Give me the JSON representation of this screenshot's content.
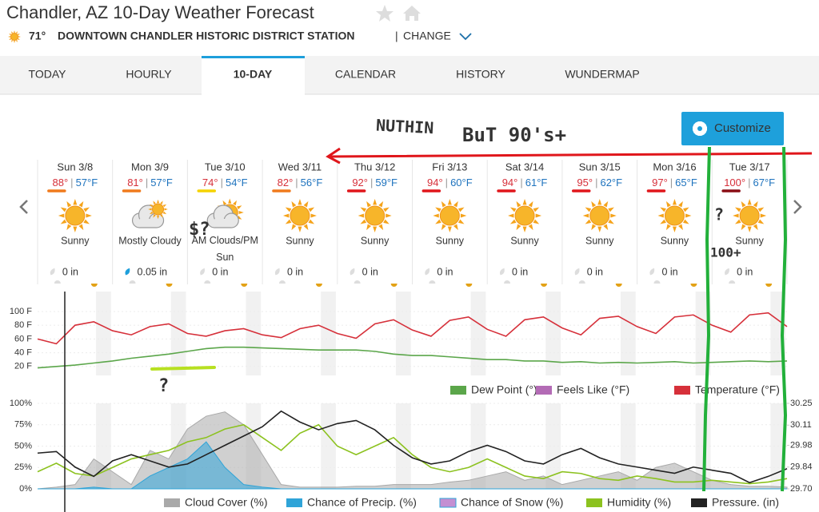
{
  "header": {
    "title": "Chandler, AZ 10-Day Weather Forecast",
    "current_temp": "71°",
    "station": "DOWNTOWN CHANDLER HISTORIC DISTRICT STATION",
    "separator": "|",
    "change": "CHANGE"
  },
  "tabs": [
    "TODAY",
    "HOURLY",
    "10-DAY",
    "CALENDAR",
    "HISTORY",
    "WUNDERMAP"
  ],
  "active_tab": "10-DAY",
  "customize": "Customize",
  "temp_separator": "|",
  "days": [
    {
      "day": "Sun 3/8",
      "hi": "88°",
      "lo": "57°F",
      "condition": "Sunny",
      "precip": "0 in"
    },
    {
      "day": "Mon 3/9",
      "hi": "81°",
      "lo": "57°F",
      "condition": "Mostly Cloudy",
      "precip": "0.05 in"
    },
    {
      "day": "Tue 3/10",
      "hi": "74°",
      "lo": "54°F",
      "condition": "AM Clouds/PM Sun",
      "precip": "0 in"
    },
    {
      "day": "Wed 3/11",
      "hi": "82°",
      "lo": "56°F",
      "condition": "Sunny",
      "precip": "0 in"
    },
    {
      "day": "Thu 3/12",
      "hi": "92°",
      "lo": "59°F",
      "condition": "Sunny",
      "precip": "0 in"
    },
    {
      "day": "Fri 3/13",
      "hi": "94°",
      "lo": "60°F",
      "condition": "Sunny",
      "precip": "0 in"
    },
    {
      "day": "Sat 3/14",
      "hi": "94°",
      "lo": "61°F",
      "condition": "Sunny",
      "precip": "0 in"
    },
    {
      "day": "Sun 3/15",
      "hi": "95°",
      "lo": "62°F",
      "condition": "Sunny",
      "precip": "0 in"
    },
    {
      "day": "Mon 3/16",
      "hi": "97°",
      "lo": "65°F",
      "condition": "Sunny",
      "precip": "0 in"
    },
    {
      "day": "Tue 3/17",
      "hi": "100°",
      "lo": "67°F",
      "condition": "Sunny",
      "precip": "0 in"
    }
  ],
  "charts": [
    {
      "type": "line",
      "ylim": [
        7,
        129
      ],
      "yticks": [
        {
          "value": 20,
          "label": "20 F"
        },
        {
          "value": 40,
          "label": "40 F"
        },
        {
          "value": 60,
          "label": "60 F"
        },
        {
          "value": 80,
          "label": "80 F"
        },
        {
          "value": 100,
          "label": "100 F"
        }
      ],
      "legend": [
        "Dew Point (°)",
        "Feels Like (°F)",
        "Temperature (°F)"
      ],
      "legend_colors": [
        "#5ba64a",
        "#b36bb5",
        "#d6303a"
      ],
      "series": [
        {
          "name": "Temperature (°F)",
          "color": "#d6303a",
          "values": [
            60,
            53,
            80,
            85,
            72,
            66,
            78,
            82,
            68,
            64,
            72,
            75,
            66,
            62,
            75,
            80,
            68,
            61,
            82,
            88,
            73,
            64,
            87,
            92,
            74,
            64,
            88,
            92,
            76,
            66,
            90,
            93,
            78,
            68,
            92,
            95,
            80,
            70,
            95,
            98,
            78
          ]
        },
        {
          "name": "Dew Point (°)",
          "color": "#5ba64a",
          "values": [
            18,
            20,
            22,
            25,
            28,
            32,
            35,
            38,
            42,
            46,
            48,
            48,
            47,
            46,
            45,
            44,
            44,
            44,
            42,
            38,
            36,
            36,
            34,
            32,
            30,
            30,
            28,
            28,
            26,
            27,
            25,
            26,
            25,
            26,
            27,
            25,
            26,
            27,
            28,
            27,
            28
          ]
        }
      ]
    },
    {
      "type": "line",
      "ylim": [
        0,
        100
      ],
      "yticks": [
        {
          "value": 0,
          "label": "0%"
        },
        {
          "value": 25,
          "label": "25%"
        },
        {
          "value": 50,
          "label": "50%"
        },
        {
          "value": 75,
          "label": "75%"
        },
        {
          "value": 100,
          "label": "100%"
        }
      ],
      "y2lim": [
        29.7,
        30.25
      ],
      "y2ticks": [
        {
          "value": 29.7,
          "label": "29.70"
        },
        {
          "value": 29.84,
          "label": "29.84"
        },
        {
          "value": 29.98,
          "label": "29.98"
        },
        {
          "value": 30.11,
          "label": "30.11"
        },
        {
          "value": 30.25,
          "label": "30.25"
        }
      ],
      "legend": [
        "Cloud Cover (%)",
        "Chance of Precip. (%)",
        "Chance of Snow (%)",
        "Humidity (%)",
        "Pressure. (in)"
      ],
      "legend_colors": [
        "#a9a9a9",
        "#2fa4d8",
        "#c48fd2",
        "#8cc21f",
        "#222222"
      ],
      "series": [
        {
          "name": "Cloud Cover (%)",
          "type": "area",
          "color": "#a9a9a9",
          "values": [
            0,
            2,
            5,
            35,
            20,
            5,
            45,
            35,
            70,
            85,
            90,
            75,
            40,
            5,
            2,
            2,
            2,
            3,
            3,
            5,
            5,
            5,
            8,
            10,
            15,
            20,
            10,
            15,
            5,
            10,
            15,
            20,
            10,
            25,
            30,
            20,
            10,
            5,
            3,
            3,
            2
          ]
        },
        {
          "name": "Chance of Precip. (%)",
          "type": "area",
          "color": "#2fa4d8",
          "values": [
            0,
            0,
            0,
            2,
            0,
            0,
            15,
            25,
            35,
            55,
            25,
            5,
            2,
            0,
            0,
            0,
            0,
            0,
            0,
            0,
            0,
            0,
            0,
            0,
            0,
            0,
            0,
            0,
            0,
            0,
            0,
            0,
            0,
            0,
            0,
            0,
            0,
            0,
            0,
            0,
            0
          ]
        },
        {
          "name": "Humidity (%)",
          "type": "line",
          "color": "#8cc21f",
          "values": [
            20,
            30,
            18,
            15,
            25,
            35,
            40,
            45,
            55,
            60,
            70,
            75,
            60,
            45,
            65,
            75,
            50,
            40,
            50,
            60,
            40,
            25,
            20,
            25,
            35,
            25,
            15,
            12,
            20,
            18,
            12,
            10,
            15,
            12,
            8,
            8,
            10,
            8,
            6,
            8,
            12
          ]
        },
        {
          "name": "Pressure. (in)",
          "type": "line",
          "axis": "y2",
          "color": "#222222",
          "values": [
            29.93,
            29.94,
            29.84,
            29.78,
            29.88,
            29.92,
            29.88,
            29.84,
            29.86,
            29.92,
            29.98,
            30.04,
            30.1,
            30.2,
            30.13,
            30.08,
            30.12,
            30.14,
            30.08,
            29.98,
            29.9,
            29.86,
            29.88,
            29.94,
            29.98,
            29.94,
            29.88,
            29.86,
            29.92,
            29.96,
            29.9,
            29.86,
            29.84,
            29.82,
            29.8,
            29.84,
            29.82,
            29.8,
            29.74,
            29.78,
            29.83
          ]
        }
      ]
    }
  ],
  "annotations": [
    "NUTHIN",
    "BuT 90's+",
    "$?",
    "?",
    "?",
    "100+"
  ]
}
